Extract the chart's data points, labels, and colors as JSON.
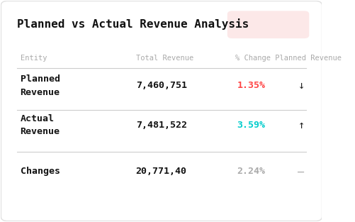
{
  "title": "Planned vs Actual Revenue Analysis",
  "header_entity": "Entity",
  "header_revenue": "Total Revenue",
  "header_pct": "% Change Planned Revenue",
  "rows": [
    {
      "entity": "Planned\nRevenue",
      "revenue": "7,460,751",
      "pct": "1.35%",
      "arrow": "↓",
      "pct_color": "#ff4444",
      "arrow_color": "#222222",
      "entity_bold": true,
      "revenue_bold": true
    },
    {
      "entity": "Actual\nRevenue",
      "revenue": "7,481,522",
      "pct": "3.59%",
      "arrow": "↑",
      "pct_color": "#00cccc",
      "arrow_color": "#222222",
      "entity_bold": true,
      "revenue_bold": true
    },
    {
      "entity": "Changes",
      "revenue": "20,771,40",
      "pct": "2.24%",
      "arrow": "—",
      "pct_color": "#aaaaaa",
      "arrow_color": "#aaaaaa",
      "entity_bold": true,
      "revenue_bold": true
    }
  ],
  "bg_color": "#ffffff",
  "card_bg": "#ffffff",
  "header_color": "#aaaaaa",
  "title_color": "#111111",
  "divider_color": "#cccccc",
  "pink_box_color": "#fce8e8",
  "fig_width": 5.01,
  "fig_height": 3.13
}
